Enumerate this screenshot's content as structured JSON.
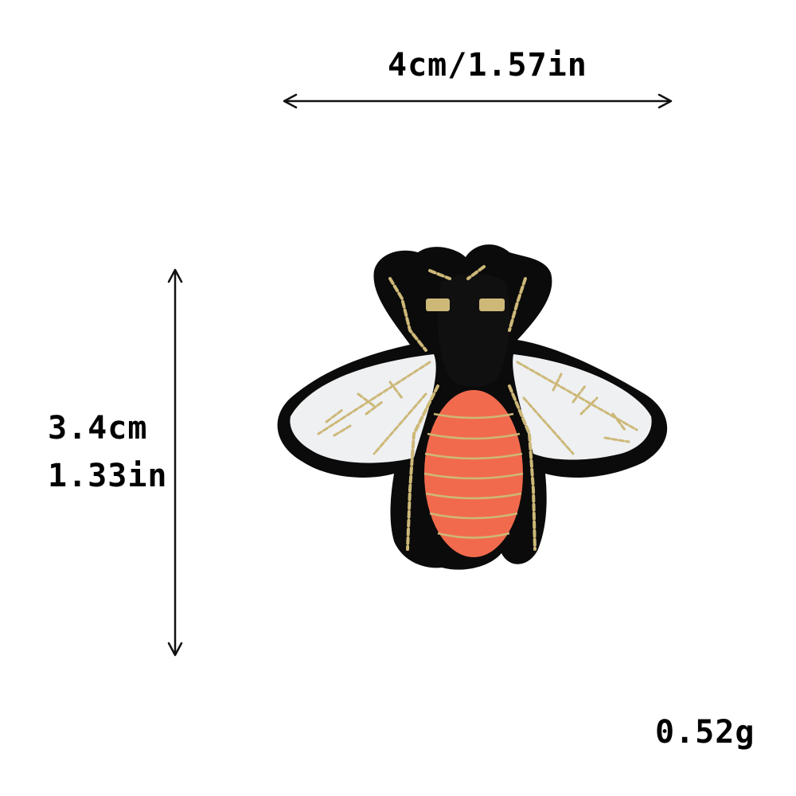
{
  "dimensions": {
    "width_text": "4cm/1.57in",
    "height_cm_text": "3.4cm",
    "height_in_text": "1.33in",
    "weight_text": "0.52g"
  },
  "patch": {
    "subject": "embroidered bee patch",
    "colors": {
      "border": "#0b0b0b",
      "abdomen": "#f26a4d",
      "wings": "#eef0f2",
      "gold_thread": "#cdb878",
      "body": "#101010"
    }
  }
}
